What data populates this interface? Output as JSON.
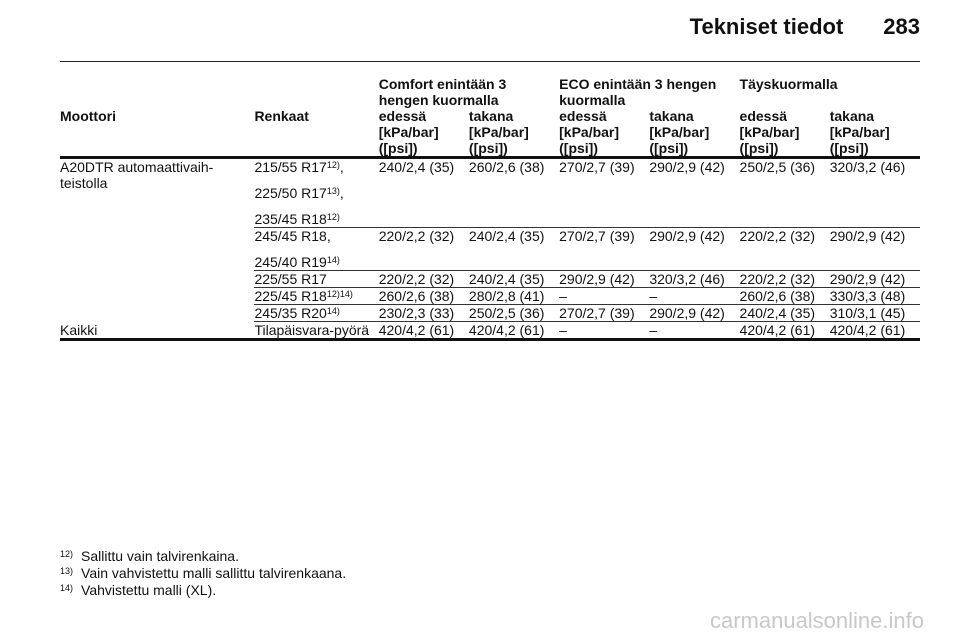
{
  "header": {
    "title": "Tekniset tiedot",
    "page": "283"
  },
  "groups": {
    "comfort": "Comfort enintään 3 hengen kuormalla",
    "eco": "ECO enintään 3 hengen kuormalla",
    "full": "Täyskuormalla"
  },
  "columns": {
    "engine": "Moottori",
    "tyres": "Renkaat",
    "front": "edessä",
    "rear": "takana",
    "unit": "[kPa/bar] ([psi])"
  },
  "rows": [
    {
      "engine": "A20DTR automaattivaih-teistolla",
      "tyres": [
        [
          "215/55 R17",
          "12)",
          ","
        ],
        [
          "225/50 R17",
          "13)",
          ","
        ],
        [
          "235/45 R18",
          "12)",
          ""
        ]
      ],
      "values": [
        "240/2,4 (35)",
        "260/2,6 (38)",
        "270/2,7 (39)",
        "290/2,9 (42)",
        "250/2,5 (36)",
        "320/3,2 (46)"
      ]
    },
    {
      "engine": "",
      "tyres": [
        [
          "245/45 R18,",
          "",
          ""
        ],
        [
          "245/40 R19",
          "14)",
          ""
        ]
      ],
      "values": [
        "220/2,2 (32)",
        "240/2,4 (35)",
        "270/2,7 (39)",
        "290/2,9 (42)",
        "220/2,2 (32)",
        "290/2,9 (42)"
      ]
    },
    {
      "engine": "",
      "tyres": [
        [
          "225/55 R17",
          "",
          ""
        ]
      ],
      "values": [
        "220/2,2 (32)",
        "240/2,4 (35)",
        "290/2,9 (42)",
        "320/3,2 (46)",
        "220/2,2 (32)",
        "290/2,9 (42)"
      ]
    },
    {
      "engine": "",
      "tyres": [
        [
          "225/45 R18",
          "12)14)",
          ""
        ]
      ],
      "values": [
        "260/2,6 (38)",
        "280/2,8 (41)",
        "–",
        "–",
        "260/2,6 (38)",
        "330/3,3 (48)"
      ]
    },
    {
      "engine": "",
      "tyres": [
        [
          "245/35 R20",
          "14)",
          ""
        ]
      ],
      "values": [
        "230/2,3 (33)",
        "250/2,5 (36)",
        "270/2,7 (39)",
        "290/2,9 (42)",
        "240/2,4 (35)",
        "310/3,1 (45)"
      ]
    },
    {
      "engine": "Kaikki",
      "tyres": [
        [
          "Tilapäisvara-pyörä",
          "",
          ""
        ]
      ],
      "values": [
        "420/4,2 (61)",
        "420/4,2 (61)",
        "–",
        "–",
        "420/4,2 (61)",
        "420/4,2 (61)"
      ]
    }
  ],
  "footnotes": [
    {
      "mark": "12)",
      "text": "Sallittu vain talvirenkaina."
    },
    {
      "mark": "13)",
      "text": "Vain vahvistettu malli sallittu talvirenkaana."
    },
    {
      "mark": "14)",
      "text": "Vahvistettu malli (XL)."
    }
  ],
  "watermark": "carmanualsonline.info"
}
